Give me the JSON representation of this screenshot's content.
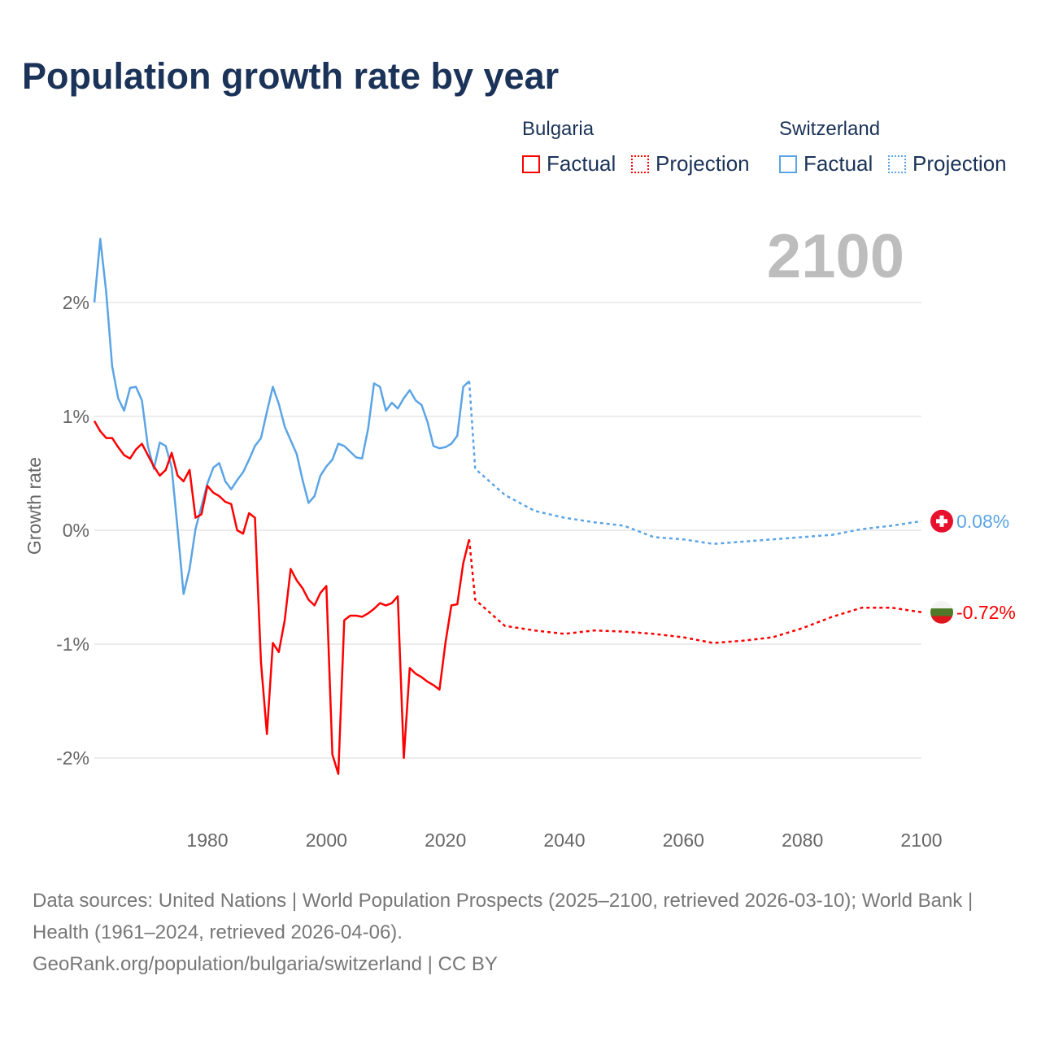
{
  "title": "Population growth rate by year",
  "year_display": "2100",
  "legend": {
    "groups": [
      {
        "name": "Bulgaria",
        "factual": "Factual",
        "projection": "Projection"
      },
      {
        "name": "Switzerland",
        "factual": "Factual",
        "projection": "Projection"
      }
    ]
  },
  "colors": {
    "Bulgaria": "#ff0000",
    "Switzerland": "#5ba4e5"
  },
  "footer": {
    "sources": "Data sources: United Nations | World Population Prospects (2025–2100, retrieved 2026-03-10); World Bank | Health (1961–2024, retrieved 2026-04-06).",
    "link": "GeoRank.org/population/bulgaria/switzerland | CC BY"
  },
  "chart_data": {
    "type": "line",
    "title": "Population growth rate by year",
    "xlabel": "",
    "ylabel": "Growth rate",
    "xlim": [
      1961,
      2100
    ],
    "ylim": [
      -2.5,
      2.6
    ],
    "x_ticks": [
      1980,
      2000,
      2020,
      2040,
      2060,
      2080,
      2100
    ],
    "x_tick_labels": [
      "1980",
      "2000",
      "2020",
      "2040",
      "2060",
      "2080",
      "2100"
    ],
    "y_ticks": [
      2,
      1,
      0,
      -1,
      -2
    ],
    "y_tick_labels": [
      "2%",
      "1%",
      "0%",
      "-1%",
      "-2%"
    ],
    "grid": true,
    "legend_position": "top-right",
    "series": [
      {
        "name": "Switzerland",
        "end_label": "0.08%",
        "factual": {
          "x": [
            1961,
            1962,
            1963,
            1964,
            1965,
            1966,
            1967,
            1968,
            1969,
            1970,
            1971,
            1972,
            1973,
            1974,
            1975,
            1976,
            1977,
            1978,
            1979,
            1980,
            1981,
            1982,
            1983,
            1984,
            1985,
            1986,
            1987,
            1988,
            1989,
            1990,
            1991,
            1992,
            1993,
            1994,
            1995,
            1996,
            1997,
            1998,
            1999,
            2000,
            2001,
            2002,
            2003,
            2004,
            2005,
            2006,
            2007,
            2008,
            2009,
            2010,
            2011,
            2012,
            2013,
            2014,
            2015,
            2016,
            2017,
            2018,
            2019,
            2020,
            2021,
            2022,
            2023,
            2024
          ],
          "y": [
            2.0,
            2.56,
            2.09,
            1.44,
            1.16,
            1.05,
            1.25,
            1.26,
            1.14,
            0.74,
            0.54,
            0.77,
            0.74,
            0.55,
            0.01,
            -0.56,
            -0.34,
            0.01,
            0.21,
            0.41,
            0.55,
            0.59,
            0.43,
            0.36,
            0.44,
            0.51,
            0.62,
            0.74,
            0.81,
            1.04,
            1.26,
            1.11,
            0.91,
            0.79,
            0.67,
            0.44,
            0.24,
            0.3,
            0.48,
            0.56,
            0.62,
            0.76,
            0.74,
            0.69,
            0.64,
            0.63,
            0.89,
            1.29,
            1.26,
            1.05,
            1.12,
            1.07,
            1.16,
            1.23,
            1.14,
            1.1,
            0.95,
            0.74,
            0.72,
            0.73,
            0.76,
            0.83,
            1.26,
            1.31
          ]
        },
        "projection": {
          "x": [
            2024,
            2025,
            2030,
            2035,
            2040,
            2045,
            2050,
            2055,
            2060,
            2065,
            2070,
            2075,
            2080,
            2085,
            2090,
            2095,
            2100
          ],
          "y": [
            1.31,
            0.54,
            0.31,
            0.17,
            0.11,
            0.07,
            0.04,
            -0.06,
            -0.08,
            -0.12,
            -0.1,
            -0.08,
            -0.06,
            -0.04,
            0.01,
            0.04,
            0.08
          ]
        }
      },
      {
        "name": "Bulgaria",
        "end_label": "-0.72%",
        "factual": {
          "x": [
            1961,
            1962,
            1963,
            1964,
            1965,
            1966,
            1967,
            1968,
            1969,
            1970,
            1971,
            1972,
            1973,
            1974,
            1975,
            1976,
            1977,
            1978,
            1979,
            1980,
            1981,
            1982,
            1983,
            1984,
            1985,
            1986,
            1987,
            1988,
            1989,
            1990,
            1991,
            1992,
            1993,
            1994,
            1995,
            1996,
            1997,
            1998,
            1999,
            2000,
            2001,
            2002,
            2003,
            2004,
            2005,
            2006,
            2007,
            2008,
            2009,
            2010,
            2011,
            2012,
            2013,
            2014,
            2015,
            2016,
            2017,
            2018,
            2019,
            2020,
            2021,
            2022,
            2023,
            2024
          ],
          "y": [
            0.96,
            0.87,
            0.81,
            0.81,
            0.73,
            0.66,
            0.63,
            0.71,
            0.76,
            0.66,
            0.56,
            0.48,
            0.53,
            0.68,
            0.48,
            0.43,
            0.53,
            0.11,
            0.14,
            0.39,
            0.33,
            0.3,
            0.25,
            0.23,
            0.0,
            -0.03,
            0.15,
            0.11,
            -1.16,
            -1.79,
            -0.99,
            -1.07,
            -0.79,
            -0.34,
            -0.44,
            -0.51,
            -0.61,
            -0.66,
            -0.55,
            -0.49,
            -1.97,
            -2.14,
            -0.79,
            -0.75,
            -0.75,
            -0.76,
            -0.73,
            -0.69,
            -0.64,
            -0.66,
            -0.64,
            -0.58,
            -2.0,
            -1.21,
            -1.26,
            -1.29,
            -1.33,
            -1.36,
            -1.4,
            -0.99,
            -0.66,
            -0.65,
            -0.29,
            -0.08
          ]
        },
        "projection": {
          "x": [
            2024,
            2025,
            2030,
            2035,
            2040,
            2045,
            2050,
            2055,
            2060,
            2065,
            2070,
            2075,
            2080,
            2085,
            2090,
            2095,
            2100
          ],
          "y": [
            -0.08,
            -0.61,
            -0.84,
            -0.88,
            -0.91,
            -0.88,
            -0.89,
            -0.91,
            -0.94,
            -0.99,
            -0.97,
            -0.94,
            -0.86,
            -0.76,
            -0.68,
            -0.68,
            -0.72
          ]
        }
      }
    ]
  }
}
